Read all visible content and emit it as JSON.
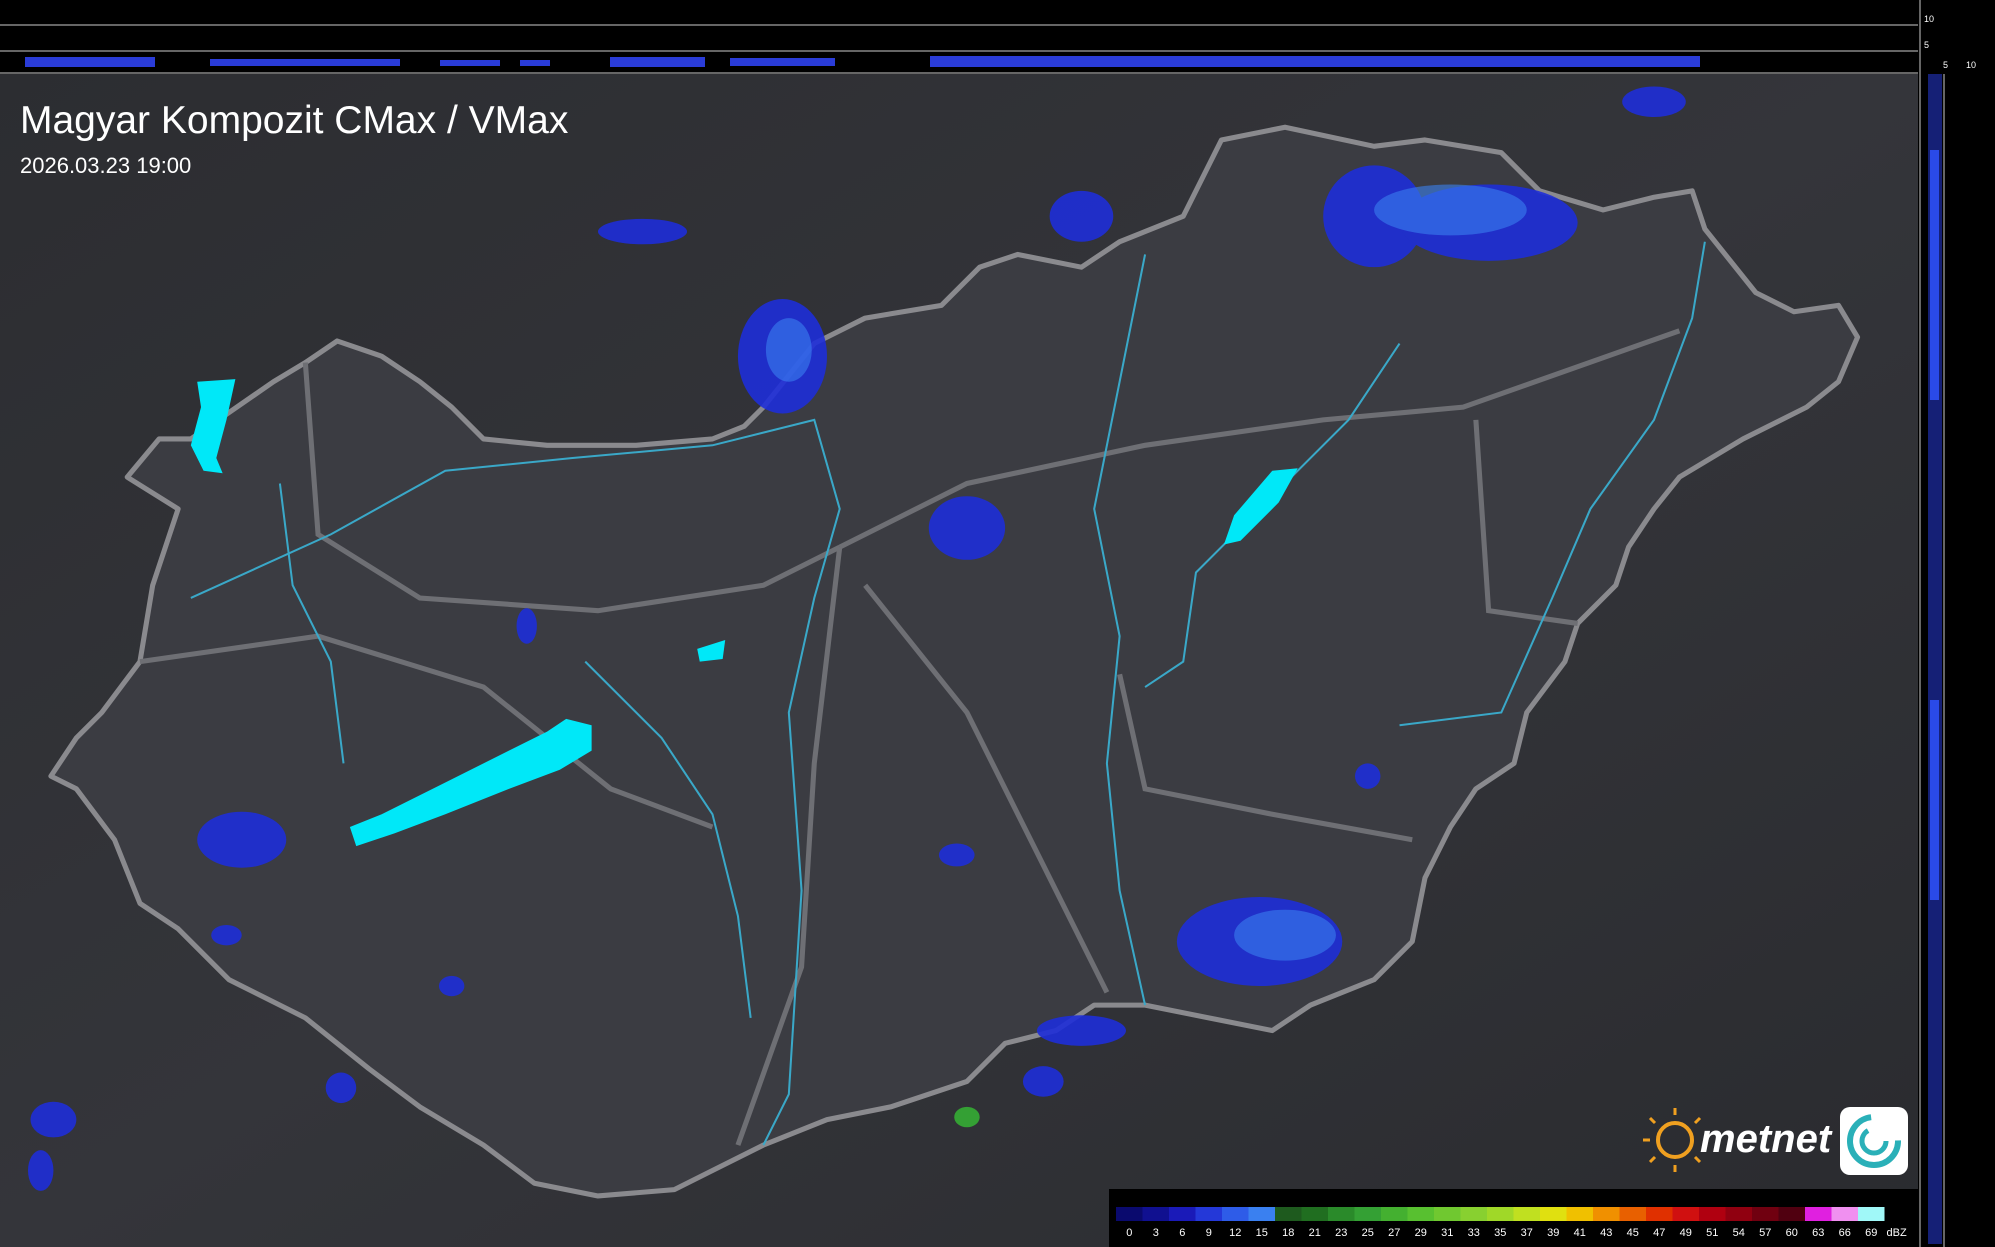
{
  "header": {
    "title": "Magyar Kompozit CMax / VMax",
    "time": "2026.03.23 19:00"
  },
  "cross_section": {
    "top_ticks": [
      10,
      5
    ],
    "side_ticks": [
      5,
      10
    ]
  },
  "logo": {
    "text": "metnet"
  },
  "legend": {
    "unit": "dBZ",
    "values": [
      0,
      3,
      6,
      9,
      12,
      15,
      18,
      21,
      23,
      25,
      27,
      29,
      31,
      33,
      35,
      37,
      39,
      41,
      43,
      45,
      47,
      49,
      51,
      54,
      57,
      60,
      63,
      66,
      69
    ],
    "colors": [
      "#0a0a6e",
      "#101090",
      "#1a1ab8",
      "#2438d8",
      "#2e5ce8",
      "#3a80f0",
      "#1e5a1e",
      "#206e20",
      "#2a8a2a",
      "#34a034",
      "#44b030",
      "#58c030",
      "#70c830",
      "#88d030",
      "#a0d828",
      "#c0e020",
      "#e0e010",
      "#f0c000",
      "#f09000",
      "#e86000",
      "#e03000",
      "#d01010",
      "#b00010",
      "#900010",
      "#700010",
      "#500010",
      "#e020e0",
      "#f090f0",
      "#a0f8f8"
    ]
  }
}
